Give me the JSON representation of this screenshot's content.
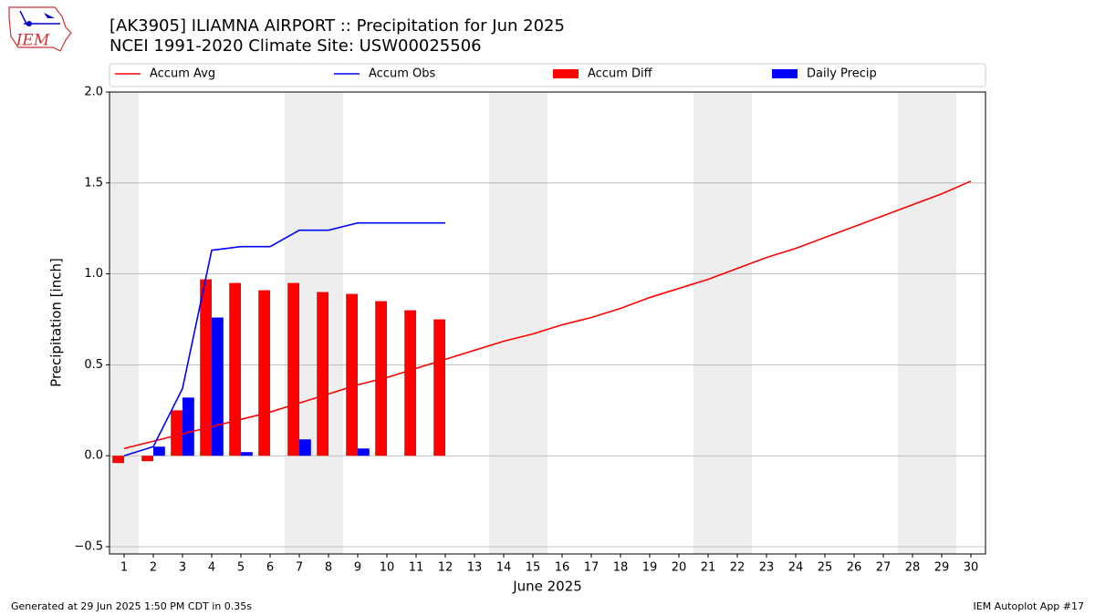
{
  "chart_data": {
    "type": "combo",
    "title": "[AK3905] ILIAMNA AIRPORT :: Precipitation for Jun 2025",
    "subtitle": "NCEI 1991-2020 Climate Site: USW00025506",
    "logo_text": "IEM",
    "xlabel": "June 2025",
    "ylabel": "Precipitation [inch]",
    "x": [
      1,
      2,
      3,
      4,
      5,
      6,
      7,
      8,
      9,
      10,
      11,
      12,
      13,
      14,
      15,
      16,
      17,
      18,
      19,
      20,
      21,
      22,
      23,
      24,
      25,
      26,
      27,
      28,
      29,
      30
    ],
    "xlim": [
      0.5,
      30.5
    ],
    "xticks": [
      1,
      2,
      3,
      4,
      5,
      6,
      7,
      8,
      9,
      10,
      11,
      12,
      13,
      14,
      15,
      16,
      17,
      18,
      19,
      20,
      21,
      22,
      23,
      24,
      25,
      26,
      27,
      28,
      29,
      30
    ],
    "ylim": [
      -0.54,
      2.0
    ],
    "yticks": [
      {
        "value": -0.5,
        "label": "−0.5"
      },
      {
        "value": 0,
        "label": "0.0"
      },
      0.5,
      {
        "value": 1,
        "label": "1.0"
      },
      1.5,
      {
        "value": 2,
        "label": "2.0"
      }
    ],
    "grid": true,
    "shaded_ranges": [
      [
        0.5,
        1.5
      ],
      [
        6.5,
        8.5
      ],
      [
        13.5,
        15.5
      ],
      [
        20.5,
        22.5
      ],
      [
        27.5,
        29.5
      ]
    ],
    "shade_color": "#eeeeee",
    "series": [
      {
        "name": "Accum Avg",
        "type": "line",
        "color": "#ff0000",
        "values": [
          0.04,
          0.08,
          0.12,
          0.16,
          0.2,
          0.24,
          0.29,
          0.34,
          0.39,
          0.43,
          0.48,
          0.53,
          0.58,
          0.63,
          0.67,
          0.72,
          0.76,
          0.81,
          0.87,
          0.92,
          0.97,
          1.03,
          1.09,
          1.14,
          1.2,
          1.26,
          1.32,
          1.38,
          1.44,
          1.51
        ]
      },
      {
        "name": "Accum Obs",
        "type": "line",
        "color": "#0000ff",
        "values": [
          0.0,
          0.05,
          0.37,
          1.13,
          1.15,
          1.15,
          1.24,
          1.24,
          1.28,
          1.28,
          1.28,
          1.28,
          null,
          null,
          null,
          null,
          null,
          null,
          null,
          null,
          null,
          null,
          null,
          null,
          null,
          null,
          null,
          null,
          null,
          null
        ]
      },
      {
        "name": "Accum Diff",
        "type": "bar",
        "color": "#ff0000",
        "values": [
          -0.04,
          -0.03,
          0.25,
          0.97,
          0.95,
          0.91,
          0.95,
          0.9,
          0.89,
          0.85,
          0.8,
          0.75,
          null,
          null,
          null,
          null,
          null,
          null,
          null,
          null,
          null,
          null,
          null,
          null,
          null,
          null,
          null,
          null,
          null,
          null
        ]
      },
      {
        "name": "Daily Precip",
        "type": "bar",
        "color": "#0000ff",
        "values": [
          0.0,
          0.05,
          0.32,
          0.76,
          0.02,
          0.0,
          0.09,
          0.0,
          0.04,
          0.0,
          0.0,
          0.0,
          null,
          null,
          null,
          null,
          null,
          null,
          null,
          null,
          null,
          null,
          null,
          null,
          null,
          null,
          null,
          null,
          null,
          null
        ]
      }
    ],
    "footer_left": "Generated at 29 Jun 2025 1:50 PM CDT in 0.35s",
    "footer_right": "IEM Autoplot App #17"
  }
}
